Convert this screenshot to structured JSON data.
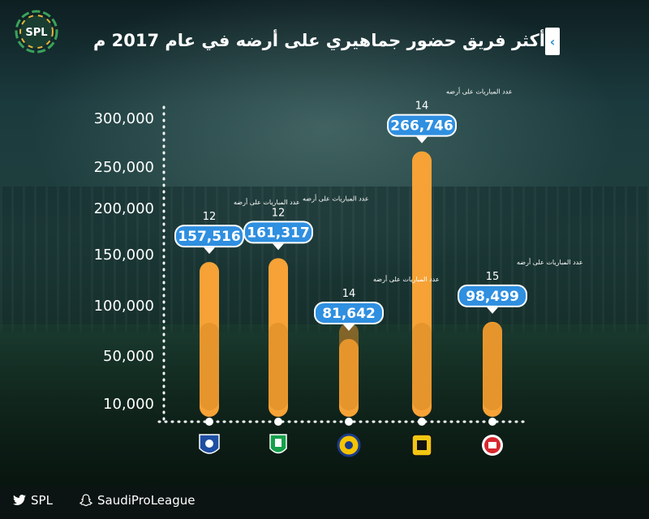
{
  "header": {
    "title": "أكثر فريق حضور جماهيري على أرضه في عام 2017 م",
    "logo_text": "SPL"
  },
  "colors": {
    "bar": "#f6a236",
    "bar_dark": "#d98a27",
    "bubble": "#2f8fe0",
    "axis_text": "#ffffff",
    "accent": "#2a8fd6"
  },
  "chart_data": {
    "type": "bar",
    "title": "أكثر فريق حضور جماهيري على أرضه في عام 2017 م",
    "categories": [
      "Al-Hilal",
      "Al-Ahli",
      "Al-Nassr",
      "Al-Ittihad",
      "Al-Raed"
    ],
    "category_icons": [
      "al-hilal-logo",
      "al-ahli-logo",
      "al-nassr-logo",
      "al-ittihad-logo",
      "al-raed-logo"
    ],
    "values": [
      157516,
      161317,
      81642,
      266746,
      98499
    ],
    "value_labels": [
      "157,516",
      "161,317",
      "81,642",
      "266,746",
      "98,499"
    ],
    "matches": [
      "12",
      "12",
      "14",
      "14",
      "15"
    ],
    "matches_caption": "عدد المباريات على أرضه",
    "y_ticks": [
      10000,
      50000,
      100000,
      150000,
      200000,
      250000,
      300000
    ],
    "y_tick_labels": [
      "10,000",
      "50,000",
      "100,000",
      "150,000",
      "200,000",
      "250,000",
      "300,000"
    ],
    "ylim": [
      0,
      300000
    ]
  },
  "footer": {
    "twitter": "SPL",
    "snapchat": "SaudiProLeague"
  }
}
